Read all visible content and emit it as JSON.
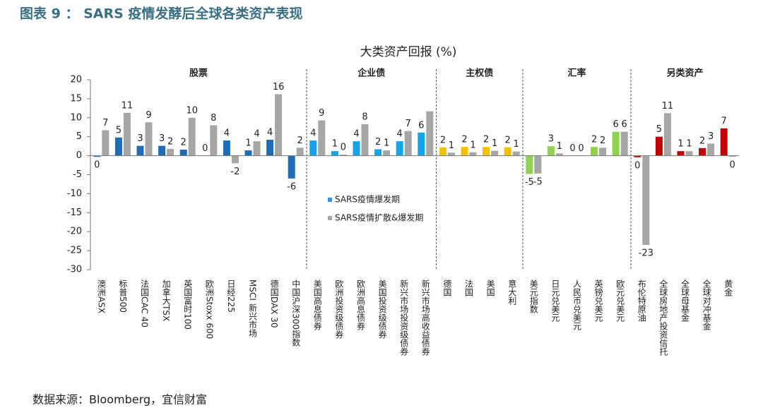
{
  "header": {
    "title": "图表 9 ： SARS 疫情发酵后全球各类资产表现"
  },
  "chart_data": {
    "type": "bar",
    "title": "大类资产回报 (%)",
    "groups": [
      {
        "name": "股票",
        "color": "#1f6db5",
        "categories": [
          "澳洲ASX",
          "标普500",
          "法国CAC 40",
          "加拿大TSX",
          "英国富时100",
          "欧洲Stoxx 600",
          "日经225",
          "MSCI 新兴市场",
          "德国DAX 30",
          "中国沪深300指数"
        ]
      },
      {
        "name": "企业债",
        "color": "#12a5e8",
        "categories": [
          "美国高息债券",
          "欧洲投资级债券",
          "欧洲高息债券",
          "美国投资级债券",
          "新兴市场投资级债券",
          "新兴市场高收益债券"
        ]
      },
      {
        "name": "主权债",
        "color": "#f2c200",
        "categories": [
          "德国",
          "法国",
          "美国",
          "意大利"
        ]
      },
      {
        "name": "汇率",
        "color": "#92d050",
        "categories": [
          "美元指数",
          "日元兑美元",
          "人民币兑美元",
          "英镑兑美元",
          "欧元兑美元"
        ]
      },
      {
        "name": "另类资产",
        "color": "#c00000",
        "categories": [
          "布伦特原油",
          "全球房地产投资信托",
          "全球母基金",
          "全球对冲基金",
          "黄金"
        ]
      }
    ],
    "series": [
      {
        "name": "SARS疫情爆发期",
        "color": "#3c8ee0",
        "values": [
          -0.3,
          4.8,
          2.6,
          2.6,
          1.6,
          0,
          4,
          1.4,
          4.2,
          -6,
          4,
          1.2,
          3.8,
          1.7,
          3.8,
          6.1,
          2.2,
          2.3,
          2.3,
          2.2,
          -4.8,
          2.5,
          0,
          2.3,
          6.3,
          -0.4,
          5,
          1.2,
          2,
          7.2
        ],
        "value_labels": [
          "0",
          "5",
          "3",
          "3",
          "2",
          "0",
          "4",
          "1",
          "4",
          "-6",
          "4",
          "1",
          "4",
          "2",
          "4",
          "6",
          "2",
          "2",
          "2",
          "2",
          "-5",
          "3",
          "0",
          "2",
          "6",
          "0",
          "5",
          "1",
          "2",
          "7"
        ]
      },
      {
        "name": "SARS疫情扩散&爆发期",
        "color": "#a6a6a6",
        "values": [
          6.7,
          11.3,
          8.8,
          1.8,
          10,
          8,
          -2,
          3.8,
          16.2,
          2.1,
          9.3,
          0.3,
          8.3,
          1.4,
          6.5,
          11.7,
          0.8,
          0.9,
          1.3,
          1.1,
          -4.7,
          0.6,
          0,
          2.1,
          6.3,
          -23.5,
          11.2,
          1.2,
          3.2,
          -0.3
        ],
        "value_labels": [
          "7",
          "11",
          "9",
          "2",
          "10",
          "8",
          "-2",
          "4",
          "16",
          "2",
          "9",
          "0",
          "8",
          "1",
          "7",
          null,
          "1",
          "1",
          "1",
          "1",
          "-5",
          "1",
          "0",
          "2",
          "6",
          "-23",
          "11",
          "1",
          "3",
          "0"
        ]
      }
    ],
    "ylim": [
      -30,
      20
    ],
    "yticks": [
      -30,
      -25,
      -20,
      -15,
      -10,
      -5,
      0,
      5,
      10,
      15,
      20
    ]
  },
  "footer": {
    "source": "数据来源：Bloomberg，宜信财富"
  }
}
